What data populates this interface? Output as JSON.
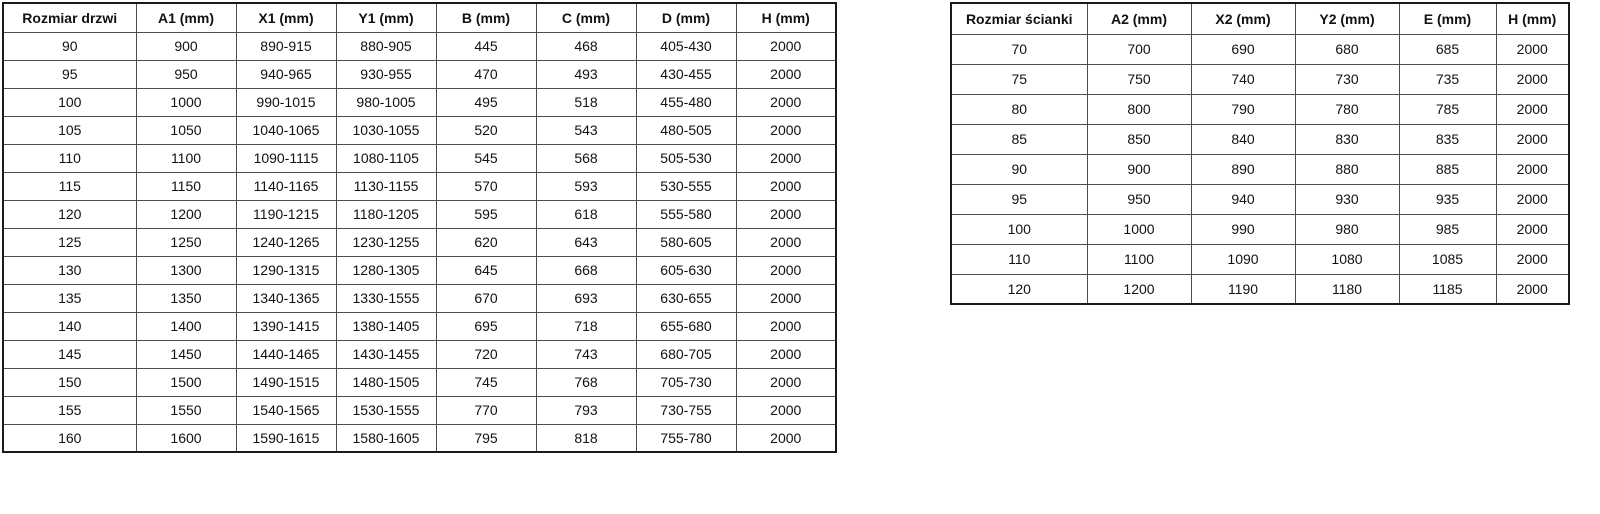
{
  "left_table": {
    "name": "door-size-table",
    "headers": [
      "Rozmiar drzwi",
      "A1 (mm)",
      "X1 (mm)",
      "Y1 (mm)",
      "B (mm)",
      "C (mm)",
      "D (mm)",
      "H (mm)"
    ],
    "rows": [
      [
        "90",
        "900",
        "890-915",
        "880-905",
        "445",
        "468",
        "405-430",
        "2000"
      ],
      [
        "95",
        "950",
        "940-965",
        "930-955",
        "470",
        "493",
        "430-455",
        "2000"
      ],
      [
        "100",
        "1000",
        "990-1015",
        "980-1005",
        "495",
        "518",
        "455-480",
        "2000"
      ],
      [
        "105",
        "1050",
        "1040-1065",
        "1030-1055",
        "520",
        "543",
        "480-505",
        "2000"
      ],
      [
        "110",
        "1100",
        "1090-1115",
        "1080-1105",
        "545",
        "568",
        "505-530",
        "2000"
      ],
      [
        "115",
        "1150",
        "1140-1165",
        "1130-1155",
        "570",
        "593",
        "530-555",
        "2000"
      ],
      [
        "120",
        "1200",
        "1190-1215",
        "1180-1205",
        "595",
        "618",
        "555-580",
        "2000"
      ],
      [
        "125",
        "1250",
        "1240-1265",
        "1230-1255",
        "620",
        "643",
        "580-605",
        "2000"
      ],
      [
        "130",
        "1300",
        "1290-1315",
        "1280-1305",
        "645",
        "668",
        "605-630",
        "2000"
      ],
      [
        "135",
        "1350",
        "1340-1365",
        "1330-1555",
        "670",
        "693",
        "630-655",
        "2000"
      ],
      [
        "140",
        "1400",
        "1390-1415",
        "1380-1405",
        "695",
        "718",
        "655-680",
        "2000"
      ],
      [
        "145",
        "1450",
        "1440-1465",
        "1430-1455",
        "720",
        "743",
        "680-705",
        "2000"
      ],
      [
        "150",
        "1500",
        "1490-1515",
        "1480-1505",
        "745",
        "768",
        "705-730",
        "2000"
      ],
      [
        "155",
        "1550",
        "1540-1565",
        "1530-1555",
        "770",
        "793",
        "730-755",
        "2000"
      ],
      [
        "160",
        "1600",
        "1590-1615",
        "1580-1605",
        "795",
        "818",
        "755-780",
        "2000"
      ]
    ]
  },
  "right_table": {
    "name": "wall-size-table",
    "headers": [
      "Rozmiar ścianki",
      "A2 (mm)",
      "X2 (mm)",
      "Y2 (mm)",
      "E (mm)",
      "H (mm)"
    ],
    "rows": [
      [
        "70",
        "700",
        "690",
        "680",
        "685",
        "2000"
      ],
      [
        "75",
        "750",
        "740",
        "730",
        "735",
        "2000"
      ],
      [
        "80",
        "800",
        "790",
        "780",
        "785",
        "2000"
      ],
      [
        "85",
        "850",
        "840",
        "830",
        "835",
        "2000"
      ],
      [
        "90",
        "900",
        "890",
        "880",
        "885",
        "2000"
      ],
      [
        "95",
        "950",
        "940",
        "930",
        "935",
        "2000"
      ],
      [
        "100",
        "1000",
        "990",
        "980",
        "985",
        "2000"
      ],
      [
        "110",
        "1100",
        "1090",
        "1080",
        "1085",
        "2000"
      ],
      [
        "120",
        "1200",
        "1190",
        "1180",
        "1185",
        "2000"
      ]
    ]
  },
  "colors": {
    "background": "#ffffff",
    "text": "#111111",
    "outer_border": "#1a1a1a",
    "inner_border": "#4d4d4d"
  }
}
